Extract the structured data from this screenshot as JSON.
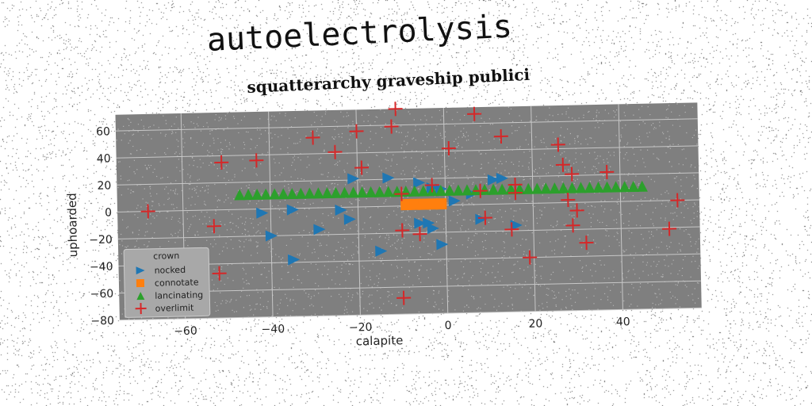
{
  "title": "autoelectrolysis",
  "subtitle": "squatterarchy graveship publici",
  "colors": {
    "plot_bg": "#7f7f7f",
    "grid": "#c8c8c8",
    "nocked": "#1f77b4",
    "connotate": "#ff7f0e",
    "lancinating": "#2ca02c",
    "overlimit": "#d62728"
  },
  "chart_data": {
    "type": "scatter",
    "title": "squatterarchy graveship publici",
    "xlabel": "calapite",
    "ylabel": "uphoarded",
    "xlim": [
      -75,
      58
    ],
    "ylim": [
      -80,
      72
    ],
    "xticks": [
      -60,
      -40,
      -20,
      0,
      20,
      40
    ],
    "yticks": [
      -80,
      -60,
      -40,
      -20,
      0,
      20,
      40,
      60
    ],
    "grid": true,
    "legend": {
      "title": "crown",
      "placement": "lower-left"
    },
    "series": [
      {
        "name": "nocked",
        "marker": "triangle-right",
        "points": [
          [
            -42,
            -3
          ],
          [
            -35,
            -1
          ],
          [
            -40,
            -20
          ],
          [
            -29,
            -16
          ],
          [
            -35,
            -38
          ],
          [
            -15,
            -33
          ],
          [
            -22,
            -9
          ],
          [
            -24,
            -2
          ],
          [
            -21,
            21
          ],
          [
            -13,
            21
          ],
          [
            -6,
            17
          ],
          [
            -3,
            13
          ],
          [
            -1,
            12
          ],
          [
            2,
            3
          ],
          [
            6,
            8
          ],
          [
            11,
            18
          ],
          [
            13,
            19
          ],
          [
            -6,
            -13
          ],
          [
            -4,
            -13
          ],
          [
            -3,
            -17
          ],
          [
            -1,
            -29
          ],
          [
            8,
            -11
          ],
          [
            16,
            -16
          ]
        ]
      },
      {
        "name": "connotate",
        "marker": "square",
        "points": [
          [
            -9,
            1
          ],
          [
            -7,
            1
          ],
          [
            -5,
            1
          ],
          [
            -3,
            1
          ],
          [
            -1,
            1
          ]
        ]
      },
      {
        "name": "lancinating",
        "marker": "triangle-up",
        "points": [
          [
            -47,
            11
          ],
          [
            -45,
            11
          ],
          [
            -43,
            11
          ],
          [
            -41,
            11
          ],
          [
            -39,
            11
          ],
          [
            -37,
            11
          ],
          [
            -35,
            11
          ],
          [
            -33,
            11
          ],
          [
            -31,
            11
          ],
          [
            -29,
            11
          ],
          [
            -27,
            11
          ],
          [
            -25,
            11
          ],
          [
            -23,
            11
          ],
          [
            -21,
            11
          ],
          [
            -19,
            11
          ],
          [
            -17,
            11
          ],
          [
            -15,
            11
          ],
          [
            -13,
            11
          ],
          [
            -11,
            11
          ],
          [
            -9,
            11
          ],
          [
            -7,
            11
          ],
          [
            -5,
            11
          ],
          [
            -3,
            11
          ],
          [
            -1,
            11
          ],
          [
            1,
            11
          ],
          [
            3,
            11
          ],
          [
            5,
            11
          ],
          [
            7,
            11
          ],
          [
            9,
            11
          ],
          [
            11,
            11
          ],
          [
            13,
            11
          ],
          [
            15,
            11
          ],
          [
            17,
            11
          ],
          [
            19,
            11
          ],
          [
            21,
            11
          ],
          [
            23,
            11
          ],
          [
            25,
            11
          ],
          [
            27,
            11
          ],
          [
            29,
            11
          ],
          [
            31,
            11
          ],
          [
            33,
            11
          ],
          [
            35,
            11
          ],
          [
            37,
            11
          ],
          [
            39,
            11
          ],
          [
            41,
            11
          ],
          [
            43,
            11
          ],
          [
            45,
            11
          ]
        ]
      },
      {
        "name": "overlimit",
        "marker": "plus",
        "points": [
          [
            -68,
            0
          ],
          [
            -53,
            -12
          ],
          [
            -52,
            -47
          ],
          [
            -51,
            35
          ],
          [
            -43,
            36
          ],
          [
            -30,
            52
          ],
          [
            -25,
            41
          ],
          [
            -19,
            29
          ],
          [
            -20,
            56
          ],
          [
            -12,
            59
          ],
          [
            -11,
            72
          ],
          [
            -10,
            9
          ],
          [
            -10,
            -18
          ],
          [
            -10,
            -68
          ],
          [
            -6,
            -21
          ],
          [
            -3,
            15
          ],
          [
            1,
            42
          ],
          [
            7,
            67
          ],
          [
            8,
            10
          ],
          [
            9,
            -10
          ],
          [
            13,
            50
          ],
          [
            15,
            -19
          ],
          [
            16,
            14
          ],
          [
            16,
            8
          ],
          [
            19,
            -40
          ],
          [
            26,
            43
          ],
          [
            27,
            28
          ],
          [
            29,
            21
          ],
          [
            28,
            2
          ],
          [
            29,
            -17
          ],
          [
            30,
            -6
          ],
          [
            32,
            -30
          ],
          [
            37,
            22
          ],
          [
            51,
            -21
          ],
          [
            53,
            0
          ]
        ]
      }
    ]
  }
}
